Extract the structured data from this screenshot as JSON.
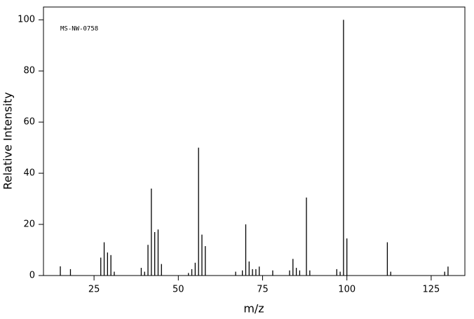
{
  "chart_data": {
    "type": "stick",
    "annotation": "MS-NW-0758",
    "x_label": "m/z",
    "y_label": "Relative Intensity",
    "x": [
      15,
      18,
      27,
      28,
      29,
      30,
      31,
      39,
      40,
      41,
      42,
      43,
      44,
      45,
      53,
      54,
      55,
      56,
      57,
      58,
      67,
      69,
      70,
      71,
      72,
      73,
      74,
      78,
      83,
      84,
      85,
      86,
      88,
      89,
      97,
      98,
      99,
      100,
      112,
      113,
      129,
      130
    ],
    "values": [
      3.6,
      2.5,
      7,
      13,
      9,
      8,
      1.5,
      3,
      1.5,
      12,
      34,
      17,
      18,
      4.5,
      1,
      2.5,
      5,
      50,
      16,
      11.5,
      1.5,
      2,
      20,
      5.5,
      2.5,
      2.5,
      3.5,
      2,
      2,
      6.5,
      3,
      2,
      30.5,
      2,
      2.5,
      1.5,
      100,
      14.5,
      13,
      1.5,
      1.5,
      3.5
    ],
    "color": "#000000",
    "xlim": [
      10,
      135
    ],
    "xticks": [
      25,
      50,
      75,
      100,
      125
    ],
    "ylim": [
      0,
      105
    ],
    "yticks": [
      0,
      20,
      40,
      60,
      80,
      100
    ]
  }
}
